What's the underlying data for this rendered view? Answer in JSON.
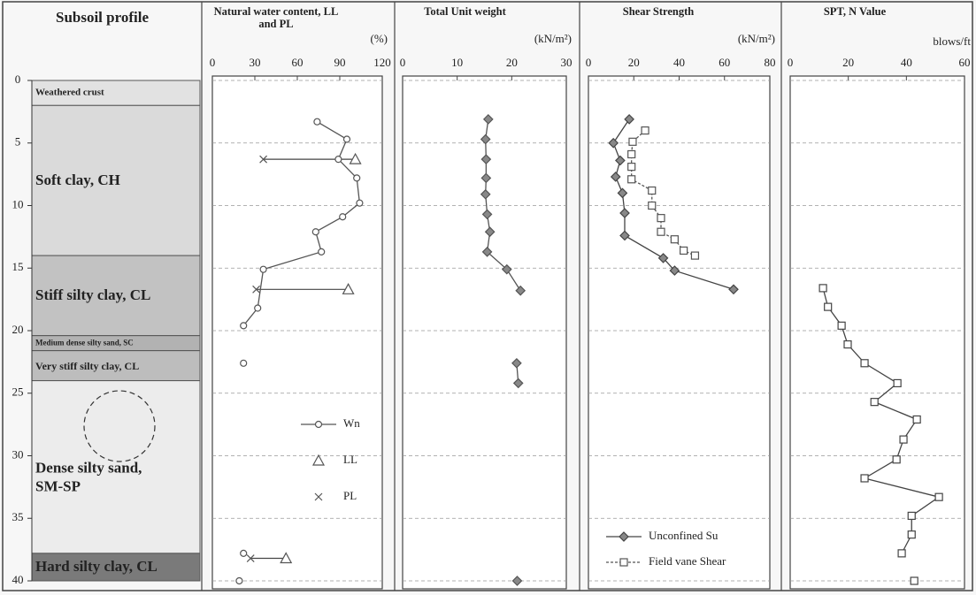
{
  "chart_data": [
    {
      "type": "profile",
      "title": "Subsoil profile",
      "ylim": [
        0,
        40
      ],
      "yticks": [
        0,
        5,
        10,
        15,
        20,
        25,
        30,
        35,
        40
      ],
      "grid": true,
      "layers": [
        {
          "name": "Weathered crust",
          "top": 0,
          "bottom": 2,
          "color": "#e2e2e2"
        },
        {
          "name": "Soft clay, CH",
          "top": 2,
          "bottom": 14,
          "color": "#dadada"
        },
        {
          "name": "Stiff silty clay, CL",
          "top": 14,
          "bottom": 20.4,
          "color": "#c2c2c2"
        },
        {
          "name": "Medium dense silty sand, SC",
          "top": 20.4,
          "bottom": 21.6,
          "color": "#b2b2b2"
        },
        {
          "name": "Very stiff silty clay, CL",
          "top": 21.6,
          "bottom": 24,
          "color": "#bdbdbd"
        },
        {
          "name": "Dense silty sand, SM-SP",
          "top": 24,
          "bottom": 37.8,
          "color": "#ececec"
        },
        {
          "name": "Hard silty clay, CL",
          "top": 37.8,
          "bottom": 40,
          "color": "#7a7a7a"
        }
      ]
    },
    {
      "type": "scatter",
      "title": "Natural water content, LL and PL",
      "unit": "(%)",
      "xlim": [
        0,
        120
      ],
      "xticks": [
        0,
        30,
        60,
        90,
        120
      ],
      "legend": "center-right",
      "series": [
        {
          "name": "Wn",
          "color": "#555555",
          "marker": "circle",
          "line": true,
          "x": [
            74,
            95,
            89,
            102,
            104,
            92,
            73,
            77,
            36,
            32,
            22,
            null,
            22,
            null,
            22,
            null,
            19
          ],
          "y": [
            3.3,
            4.7,
            6.3,
            7.8,
            9.8,
            10.9,
            12.1,
            13.7,
            15.1,
            18.2,
            19.6,
            null,
            22.6,
            null,
            37.8,
            null,
            40
          ]
        },
        {
          "name": "LL",
          "color": "#555555",
          "marker": "triangle",
          "line": false,
          "x": [
            101,
            96,
            52
          ],
          "y": [
            6.3,
            16.7,
            38.2
          ]
        },
        {
          "name": "PL",
          "color": "#555555",
          "marker": "cross",
          "line": false,
          "x": [
            36,
            31,
            27
          ],
          "y": [
            6.3,
            16.7,
            38.2
          ]
        }
      ]
    },
    {
      "type": "scatter",
      "title": "Total Unit weight",
      "unit": "(kN/m²)",
      "xlim": [
        0,
        30
      ],
      "xticks": [
        0,
        10,
        20,
        30
      ],
      "series": [
        {
          "color": "#555555",
          "marker": "diamond",
          "line": true,
          "x": [
            15.7,
            15.2,
            15.3,
            15.3,
            15.2,
            15.5,
            16,
            15.5,
            19.1,
            21.6,
            null,
            20.9,
            21.2,
            null,
            21
          ],
          "y": [
            3.1,
            4.7,
            6.3,
            7.8,
            9.1,
            10.7,
            12.1,
            13.7,
            15.1,
            16.8,
            null,
            22.6,
            24.2,
            null,
            40
          ]
        }
      ]
    },
    {
      "type": "scatter",
      "title": "Shear Strength",
      "unit": "(kN/m²)",
      "xlim": [
        0,
        80
      ],
      "xticks": [
        0,
        20,
        40,
        60,
        80
      ],
      "legend": "lower-left",
      "series": [
        {
          "name": "Unconfined Su",
          "color": "#444444",
          "marker": "diamond",
          "line": true,
          "x": [
            18,
            11,
            14,
            12,
            15,
            16,
            16,
            33,
            38,
            64
          ],
          "y": [
            3.1,
            5.0,
            6.4,
            7.7,
            9.0,
            10.6,
            12.4,
            14.2,
            15.2,
            16.7
          ]
        },
        {
          "name": "Field vane Shear",
          "color": "#555555",
          "marker": "square",
          "line": true,
          "dash": true,
          "x": [
            25,
            19.5,
            19,
            19,
            19,
            28,
            28,
            32,
            32,
            38,
            42,
            47
          ],
          "y": [
            4.0,
            4.9,
            5.9,
            6.9,
            7.9,
            8.8,
            10.0,
            11.0,
            12.1,
            12.7,
            13.6,
            14.0
          ]
        }
      ]
    },
    {
      "type": "scatter",
      "title": "SPT, N Value",
      "unit": "blows/ft",
      "xlim": [
        0,
        60
      ],
      "xticks": [
        0,
        20,
        40,
        60
      ],
      "series": [
        {
          "color": "#444444",
          "marker": "square",
          "line": true,
          "x": [
            11.3,
            13,
            17.7,
            19.8,
            25.6,
            36.9,
            29,
            43.6,
            39,
            36.6,
            25.6,
            51.2,
            41.8,
            41.8,
            38.4,
            null,
            42.7
          ],
          "y": [
            16.6,
            18.1,
            19.6,
            21.1,
            22.6,
            24.2,
            25.7,
            27.1,
            28.7,
            30.3,
            31.8,
            33.3,
            34.8,
            36.3,
            37.8,
            null,
            40
          ]
        }
      ]
    }
  ]
}
